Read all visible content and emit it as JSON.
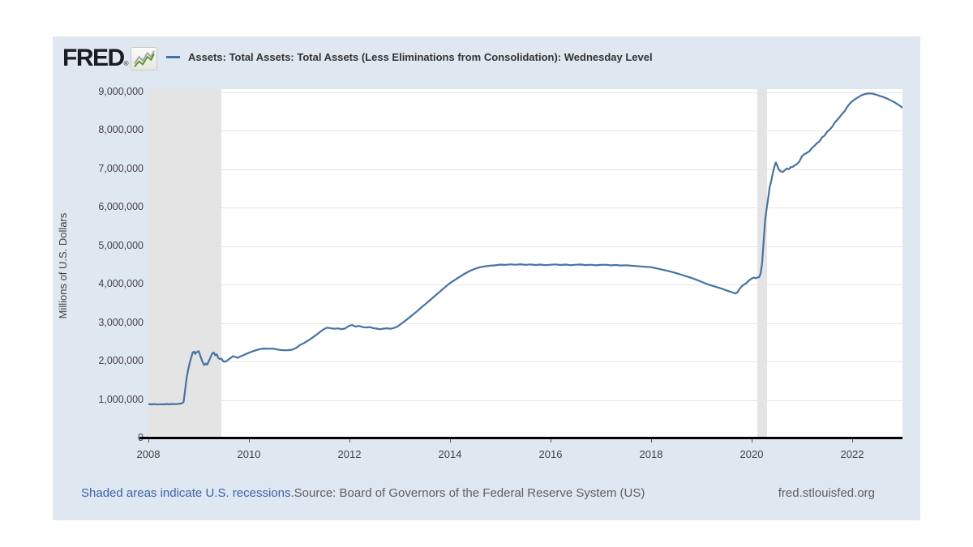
{
  "header": {
    "logo_text": "FRED",
    "registered_mark": "®",
    "legend_label": "Assets: Total Assets: Total Assets (Less Eliminations from Consolidation): Wednesday Level"
  },
  "footer": {
    "recession_note": "Shaded areas indicate U.S. recessions.",
    "source": "Source: Board of Governors of the Federal Reserve System (US)",
    "site": "fred.stlouisfed.org"
  },
  "colors": {
    "card_bg": "#dfe7f0",
    "plot_bg": "#ffffff",
    "recession": "#e4e4e4",
    "grid": "#e6e6e6",
    "axis": "#000000",
    "line": "#4572a7",
    "link_blue": "#3a64ad",
    "text_dark": "#333333",
    "text_label": "#424242",
    "text_muted": "#606060",
    "logo_text": "#1a1c20",
    "spark_green": "#5a8f29",
    "spark_gray": "#9aa3a8"
  },
  "chart_data": {
    "type": "line",
    "title": "Assets: Total Assets: Total Assets (Less Eliminations from Consolidation): Wednesday Level",
    "xlabel": "",
    "ylabel": "Millions of U.S. Dollars",
    "x_domain": [
      2008,
      2023
    ],
    "ylim": [
      0,
      9074000
    ],
    "grid": "horizontal",
    "legend_position": "top",
    "yticks": [
      {
        "value": 0,
        "label": "0"
      },
      {
        "value": 1000000,
        "label": "1,000,000"
      },
      {
        "value": 2000000,
        "label": "2,000,000"
      },
      {
        "value": 3000000,
        "label": "3,000,000"
      },
      {
        "value": 4000000,
        "label": "4,000,000"
      },
      {
        "value": 5000000,
        "label": "5,000,000"
      },
      {
        "value": 6000000,
        "label": "6,000,000"
      },
      {
        "value": 7000000,
        "label": "7,000,000"
      },
      {
        "value": 8000000,
        "label": "8,000,000"
      },
      {
        "value": 9000000,
        "label": "9,000,000"
      }
    ],
    "xticks": [
      2008,
      2010,
      2012,
      2014,
      2016,
      2018,
      2020,
      2022
    ],
    "recession_bands": [
      {
        "start": 2008.0,
        "end": 2009.45
      },
      {
        "start": 2020.12,
        "end": 2020.3
      }
    ],
    "series": [
      {
        "name": "Assets: Total Assets: Total Assets (Less Eliminations from Consolidation): Wednesday Level",
        "units": "Millions of U.S. Dollars",
        "points": [
          [
            2008.0,
            893
          ],
          [
            2008.06,
            884
          ],
          [
            2008.12,
            892
          ],
          [
            2008.18,
            881
          ],
          [
            2008.24,
            889
          ],
          [
            2008.3,
            885
          ],
          [
            2008.36,
            892
          ],
          [
            2008.42,
            887
          ],
          [
            2008.48,
            894
          ],
          [
            2008.54,
            891
          ],
          [
            2008.6,
            900
          ],
          [
            2008.66,
            907
          ],
          [
            2008.7,
            945
          ],
          [
            2008.73,
            1250
          ],
          [
            2008.76,
            1560
          ],
          [
            2008.79,
            1780
          ],
          [
            2008.82,
            1950
          ],
          [
            2008.85,
            2090
          ],
          [
            2008.88,
            2230
          ],
          [
            2008.91,
            2255
          ],
          [
            2008.93,
            2195
          ],
          [
            2008.96,
            2240
          ],
          [
            2009.0,
            2268
          ],
          [
            2009.04,
            2120
          ],
          [
            2009.08,
            1975
          ],
          [
            2009.11,
            1905
          ],
          [
            2009.14,
            1945
          ],
          [
            2009.17,
            1915
          ],
          [
            2009.21,
            2030
          ],
          [
            2009.24,
            2120
          ],
          [
            2009.27,
            2205
          ],
          [
            2009.3,
            2230
          ],
          [
            2009.33,
            2160
          ],
          [
            2009.36,
            2185
          ],
          [
            2009.39,
            2090
          ],
          [
            2009.42,
            2065
          ],
          [
            2009.45,
            2072
          ],
          [
            2009.49,
            2005
          ],
          [
            2009.53,
            1992
          ],
          [
            2009.58,
            2035
          ],
          [
            2009.63,
            2085
          ],
          [
            2009.68,
            2135
          ],
          [
            2009.73,
            2115
          ],
          [
            2009.78,
            2092
          ],
          [
            2009.83,
            2130
          ],
          [
            2009.88,
            2155
          ],
          [
            2009.93,
            2185
          ],
          [
            2009.98,
            2215
          ],
          [
            2010.06,
            2255
          ],
          [
            2010.14,
            2290
          ],
          [
            2010.22,
            2320
          ],
          [
            2010.3,
            2335
          ],
          [
            2010.38,
            2328
          ],
          [
            2010.46,
            2332
          ],
          [
            2010.54,
            2318
          ],
          [
            2010.62,
            2300
          ],
          [
            2010.7,
            2290
          ],
          [
            2010.78,
            2292
          ],
          [
            2010.86,
            2305
          ],
          [
            2010.94,
            2350
          ],
          [
            2011.02,
            2430
          ],
          [
            2011.1,
            2480
          ],
          [
            2011.18,
            2545
          ],
          [
            2011.26,
            2615
          ],
          [
            2011.34,
            2690
          ],
          [
            2011.42,
            2770
          ],
          [
            2011.5,
            2845
          ],
          [
            2011.56,
            2878
          ],
          [
            2011.63,
            2862
          ],
          [
            2011.7,
            2848
          ],
          [
            2011.77,
            2860
          ],
          [
            2011.84,
            2838
          ],
          [
            2011.91,
            2852
          ],
          [
            2011.98,
            2915
          ],
          [
            2012.05,
            2948
          ],
          [
            2012.12,
            2905
          ],
          [
            2012.19,
            2922
          ],
          [
            2012.26,
            2892
          ],
          [
            2012.33,
            2880
          ],
          [
            2012.4,
            2893
          ],
          [
            2012.47,
            2868
          ],
          [
            2012.54,
            2852
          ],
          [
            2012.61,
            2835
          ],
          [
            2012.68,
            2852
          ],
          [
            2012.75,
            2862
          ],
          [
            2012.82,
            2848
          ],
          [
            2012.89,
            2872
          ],
          [
            2012.96,
            2912
          ],
          [
            2013.04,
            2990
          ],
          [
            2013.12,
            3065
          ],
          [
            2013.2,
            3150
          ],
          [
            2013.28,
            3235
          ],
          [
            2013.36,
            3320
          ],
          [
            2013.44,
            3415
          ],
          [
            2013.52,
            3500
          ],
          [
            2013.6,
            3590
          ],
          [
            2013.68,
            3680
          ],
          [
            2013.76,
            3770
          ],
          [
            2013.84,
            3862
          ],
          [
            2013.92,
            3950
          ],
          [
            2014.0,
            4035
          ],
          [
            2014.1,
            4120
          ],
          [
            2014.2,
            4205
          ],
          [
            2014.3,
            4285
          ],
          [
            2014.4,
            4355
          ],
          [
            2014.5,
            4408
          ],
          [
            2014.6,
            4448
          ],
          [
            2014.7,
            4472
          ],
          [
            2014.8,
            4488
          ],
          [
            2014.9,
            4498
          ],
          [
            2015.0,
            4516
          ],
          [
            2015.1,
            4508
          ],
          [
            2015.2,
            4522
          ],
          [
            2015.3,
            4512
          ],
          [
            2015.4,
            4524
          ],
          [
            2015.5,
            4510
          ],
          [
            2015.6,
            4520
          ],
          [
            2015.7,
            4506
          ],
          [
            2015.8,
            4516
          ],
          [
            2015.9,
            4502
          ],
          [
            2016.0,
            4512
          ],
          [
            2016.1,
            4520
          ],
          [
            2016.2,
            4506
          ],
          [
            2016.3,
            4516
          ],
          [
            2016.4,
            4502
          ],
          [
            2016.5,
            4512
          ],
          [
            2016.6,
            4518
          ],
          [
            2016.7,
            4504
          ],
          [
            2016.8,
            4512
          ],
          [
            2016.9,
            4498
          ],
          [
            2017.0,
            4508
          ],
          [
            2017.1,
            4512
          ],
          [
            2017.2,
            4498
          ],
          [
            2017.3,
            4506
          ],
          [
            2017.4,
            4492
          ],
          [
            2017.5,
            4500
          ],
          [
            2017.6,
            4486
          ],
          [
            2017.7,
            4478
          ],
          [
            2017.8,
            4468
          ],
          [
            2017.9,
            4458
          ],
          [
            2018.0,
            4448
          ],
          [
            2018.1,
            4420
          ],
          [
            2018.2,
            4392
          ],
          [
            2018.3,
            4362
          ],
          [
            2018.4,
            4330
          ],
          [
            2018.5,
            4292
          ],
          [
            2018.6,
            4252
          ],
          [
            2018.7,
            4212
          ],
          [
            2018.8,
            4170
          ],
          [
            2018.9,
            4122
          ],
          [
            2019.0,
            4072
          ],
          [
            2019.1,
            4014
          ],
          [
            2019.2,
            3972
          ],
          [
            2019.3,
            3932
          ],
          [
            2019.4,
            3892
          ],
          [
            2019.5,
            3845
          ],
          [
            2019.6,
            3802
          ],
          [
            2019.68,
            3765
          ],
          [
            2019.72,
            3800
          ],
          [
            2019.76,
            3885
          ],
          [
            2019.8,
            3948
          ],
          [
            2019.84,
            3992
          ],
          [
            2019.88,
            4022
          ],
          [
            2019.92,
            4068
          ],
          [
            2019.96,
            4118
          ],
          [
            2020.0,
            4152
          ],
          [
            2020.04,
            4178
          ],
          [
            2020.08,
            4162
          ],
          [
            2020.12,
            4182
          ],
          [
            2020.15,
            4192
          ],
          [
            2020.18,
            4290
          ],
          [
            2020.21,
            4580
          ],
          [
            2020.24,
            5150
          ],
          [
            2020.27,
            5680
          ],
          [
            2020.3,
            5985
          ],
          [
            2020.33,
            6250
          ],
          [
            2020.36,
            6540
          ],
          [
            2020.39,
            6690
          ],
          [
            2020.42,
            6880
          ],
          [
            2020.45,
            7050
          ],
          [
            2020.48,
            7168
          ],
          [
            2020.51,
            7085
          ],
          [
            2020.54,
            6985
          ],
          [
            2020.58,
            6935
          ],
          [
            2020.62,
            6922
          ],
          [
            2020.66,
            6965
          ],
          [
            2020.7,
            7012
          ],
          [
            2020.74,
            6995
          ],
          [
            2020.78,
            7048
          ],
          [
            2020.82,
            7058
          ],
          [
            2020.86,
            7095
          ],
          [
            2020.9,
            7125
          ],
          [
            2020.95,
            7195
          ],
          [
            2021.0,
            7330
          ],
          [
            2021.05,
            7385
          ],
          [
            2021.1,
            7420
          ],
          [
            2021.15,
            7462
          ],
          [
            2021.2,
            7545
          ],
          [
            2021.25,
            7602
          ],
          [
            2021.3,
            7672
          ],
          [
            2021.35,
            7718
          ],
          [
            2021.4,
            7822
          ],
          [
            2021.45,
            7865
          ],
          [
            2021.5,
            7962
          ],
          [
            2021.55,
            8022
          ],
          [
            2021.6,
            8092
          ],
          [
            2021.65,
            8198
          ],
          [
            2021.7,
            8272
          ],
          [
            2021.75,
            8348
          ],
          [
            2021.8,
            8432
          ],
          [
            2021.85,
            8502
          ],
          [
            2021.9,
            8608
          ],
          [
            2021.95,
            8695
          ],
          [
            2022.0,
            8757
          ],
          [
            2022.06,
            8818
          ],
          [
            2022.12,
            8862
          ],
          [
            2022.18,
            8912
          ],
          [
            2022.24,
            8942
          ],
          [
            2022.3,
            8958
          ],
          [
            2022.36,
            8965
          ],
          [
            2022.42,
            8952
          ],
          [
            2022.48,
            8928
          ],
          [
            2022.54,
            8902
          ],
          [
            2022.6,
            8878
          ],
          [
            2022.66,
            8848
          ],
          [
            2022.72,
            8812
          ],
          [
            2022.78,
            8772
          ],
          [
            2022.84,
            8732
          ],
          [
            2022.9,
            8682
          ],
          [
            2022.96,
            8635
          ],
          [
            2023.0,
            8590
          ]
        ],
        "values_scale": "thousands of millions USD (values listed in billions; multiply by 1000 for axis units)"
      }
    ]
  }
}
